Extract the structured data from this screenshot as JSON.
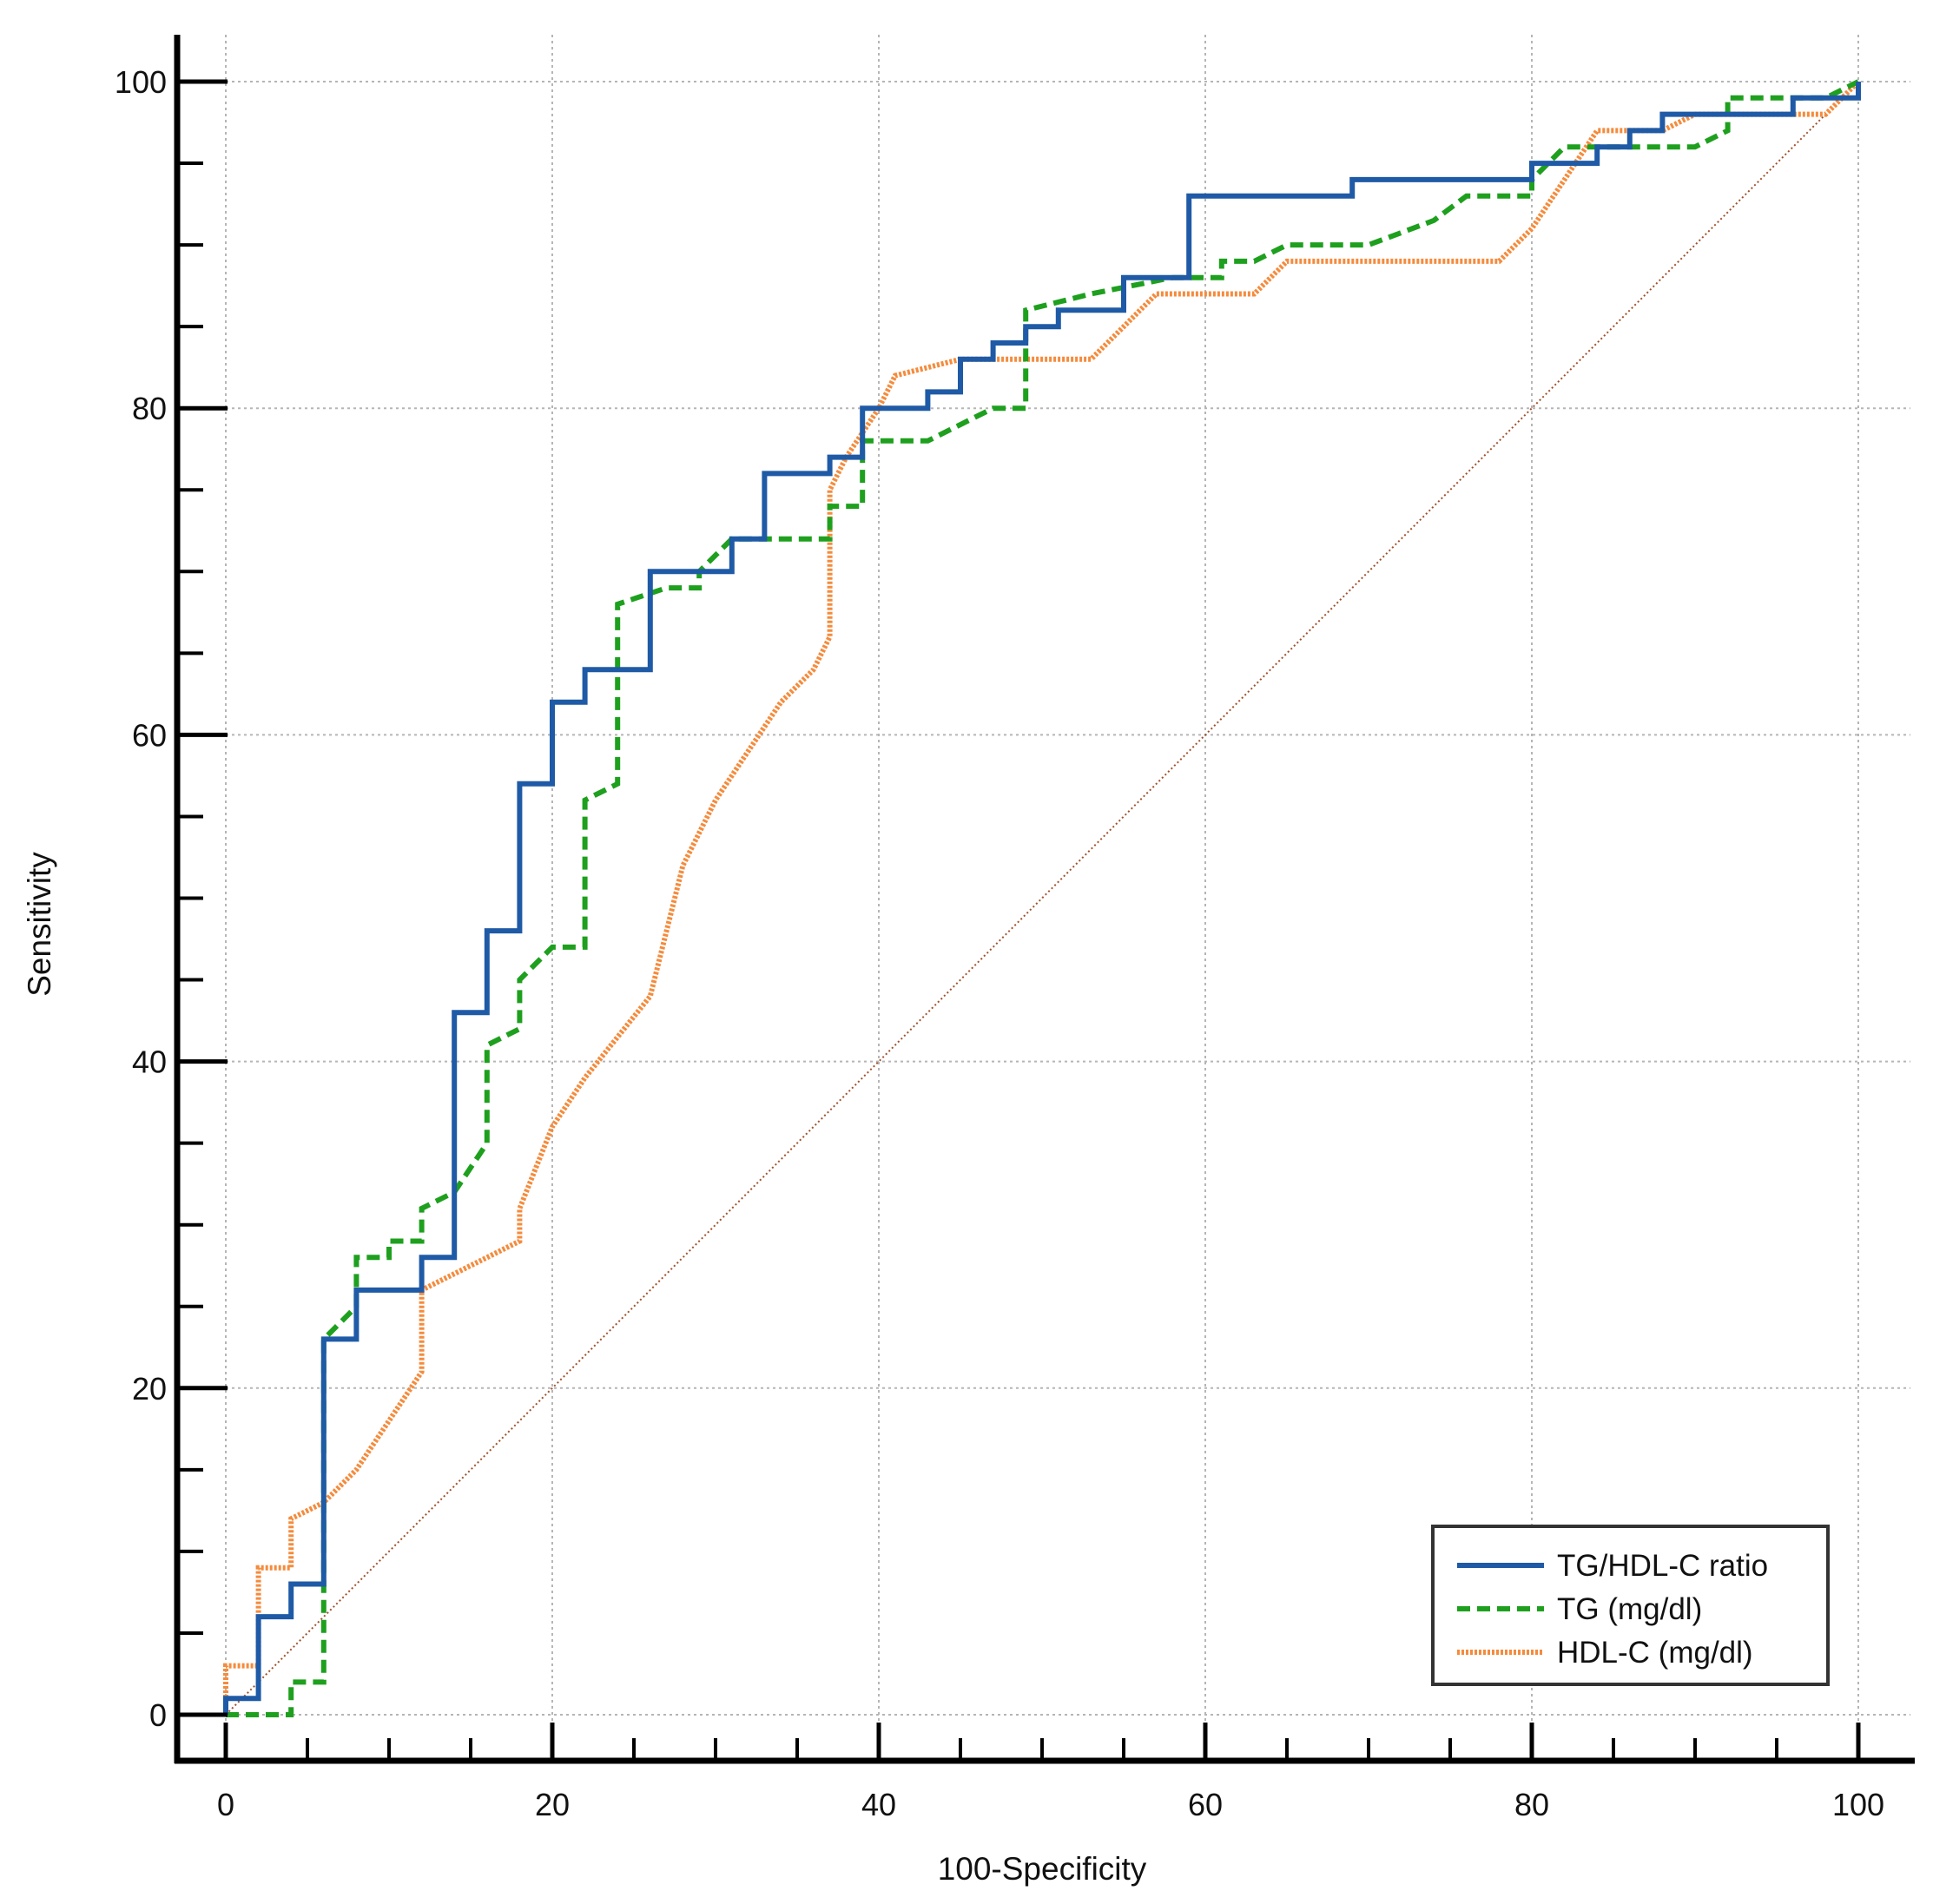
{
  "chart_data": {
    "type": "line",
    "title": "",
    "xlabel": "100-Specificity",
    "ylabel": "Sensitivity",
    "xlim": [
      0,
      100
    ],
    "ylim": [
      0,
      100
    ],
    "x_ticks": [
      0,
      20,
      40,
      60,
      80,
      100
    ],
    "y_ticks": [
      0,
      20,
      40,
      60,
      80,
      100
    ],
    "minor_tick_step": 5,
    "grid": true,
    "legend_position": "bottom-right",
    "reference_line": {
      "name": "Reference diagonal",
      "color": "#a0522d",
      "points": [
        [
          0,
          0
        ],
        [
          100,
          100
        ]
      ]
    },
    "series": [
      {
        "name": "TG/HDL-C ratio",
        "color": "#1f5aa6",
        "style": "solid",
        "points": [
          [
            0,
            0
          ],
          [
            0,
            1
          ],
          [
            2,
            1
          ],
          [
            2,
            6
          ],
          [
            4,
            6
          ],
          [
            4,
            8
          ],
          [
            6,
            8
          ],
          [
            6,
            23
          ],
          [
            8,
            23
          ],
          [
            8,
            26
          ],
          [
            12,
            26
          ],
          [
            12,
            28
          ],
          [
            14,
            28
          ],
          [
            14,
            43
          ],
          [
            16,
            43
          ],
          [
            16,
            48
          ],
          [
            18,
            48
          ],
          [
            18,
            57
          ],
          [
            20,
            57
          ],
          [
            20,
            62
          ],
          [
            22,
            62
          ],
          [
            22,
            64
          ],
          [
            26,
            64
          ],
          [
            26,
            70
          ],
          [
            31,
            70
          ],
          [
            31,
            72
          ],
          [
            33,
            72
          ],
          [
            33,
            76
          ],
          [
            37,
            76
          ],
          [
            37,
            77
          ],
          [
            39,
            77
          ],
          [
            39,
            80
          ],
          [
            43,
            80
          ],
          [
            43,
            81
          ],
          [
            45,
            81
          ],
          [
            45,
            83
          ],
          [
            47,
            83
          ],
          [
            47,
            84
          ],
          [
            49,
            84
          ],
          [
            49,
            85
          ],
          [
            51,
            85
          ],
          [
            51,
            86
          ],
          [
            55,
            86
          ],
          [
            55,
            88
          ],
          [
            59,
            88
          ],
          [
            59,
            93
          ],
          [
            69,
            93
          ],
          [
            69,
            94
          ],
          [
            80,
            94
          ],
          [
            80,
            95
          ],
          [
            84,
            95
          ],
          [
            84,
            96
          ],
          [
            86,
            96
          ],
          [
            86,
            97
          ],
          [
            88,
            97
          ],
          [
            88,
            98
          ],
          [
            96,
            98
          ],
          [
            96,
            99
          ],
          [
            100,
            99
          ],
          [
            100,
            100
          ]
        ]
      },
      {
        "name": "TG (mg/dl)",
        "color": "#1ea01e",
        "style": "dashed",
        "points": [
          [
            0,
            0
          ],
          [
            4,
            0
          ],
          [
            4,
            2
          ],
          [
            6,
            2
          ],
          [
            6,
            23
          ],
          [
            8,
            25
          ],
          [
            8,
            28
          ],
          [
            10,
            28
          ],
          [
            10,
            29
          ],
          [
            12,
            29
          ],
          [
            12,
            31
          ],
          [
            14,
            32
          ],
          [
            16,
            35
          ],
          [
            16,
            41
          ],
          [
            18,
            42
          ],
          [
            18,
            45
          ],
          [
            20,
            47
          ],
          [
            22,
            47
          ],
          [
            22,
            56
          ],
          [
            24,
            57
          ],
          [
            24,
            68
          ],
          [
            27,
            69
          ],
          [
            29,
            69
          ],
          [
            29,
            70
          ],
          [
            31,
            72
          ],
          [
            37,
            72
          ],
          [
            37,
            74
          ],
          [
            39,
            74
          ],
          [
            39,
            78
          ],
          [
            43,
            78
          ],
          [
            47,
            80
          ],
          [
            49,
            80
          ],
          [
            49,
            86
          ],
          [
            51,
            86.5
          ],
          [
            53,
            87
          ],
          [
            58,
            88
          ],
          [
            61,
            88
          ],
          [
            61,
            89
          ],
          [
            63,
            89
          ],
          [
            65,
            90
          ],
          [
            70,
            90
          ],
          [
            74,
            91.5
          ],
          [
            76,
            93
          ],
          [
            80,
            93
          ],
          [
            80,
            94
          ],
          [
            82,
            96
          ],
          [
            88,
            96
          ],
          [
            90,
            96
          ],
          [
            92,
            97
          ],
          [
            92,
            99
          ],
          [
            98,
            99
          ],
          [
            100,
            100
          ]
        ]
      },
      {
        "name": "HDL-C (mg/dl)",
        "color": "#f58b3c",
        "style": "dotted",
        "points": [
          [
            0,
            0
          ],
          [
            0,
            3
          ],
          [
            2,
            3
          ],
          [
            2,
            9
          ],
          [
            4,
            9
          ],
          [
            4,
            12
          ],
          [
            6,
            13
          ],
          [
            8,
            15
          ],
          [
            10,
            18
          ],
          [
            12,
            21
          ],
          [
            12,
            26
          ],
          [
            16,
            28
          ],
          [
            18,
            29
          ],
          [
            18,
            31
          ],
          [
            20,
            36
          ],
          [
            22,
            39
          ],
          [
            24,
            41.5
          ],
          [
            26,
            44
          ],
          [
            28,
            52
          ],
          [
            30,
            56
          ],
          [
            32,
            59
          ],
          [
            34,
            62
          ],
          [
            36,
            64
          ],
          [
            37,
            66
          ],
          [
            37,
            75
          ],
          [
            38,
            77
          ],
          [
            40,
            80
          ],
          [
            41,
            82
          ],
          [
            45,
            83
          ],
          [
            53,
            83
          ],
          [
            55,
            85
          ],
          [
            57,
            87
          ],
          [
            63,
            87
          ],
          [
            65,
            89
          ],
          [
            78,
            89
          ],
          [
            80,
            91
          ],
          [
            82,
            94
          ],
          [
            84,
            97
          ],
          [
            88,
            97
          ],
          [
            90,
            98
          ],
          [
            98,
            98
          ],
          [
            100,
            100
          ]
        ]
      }
    ]
  }
}
